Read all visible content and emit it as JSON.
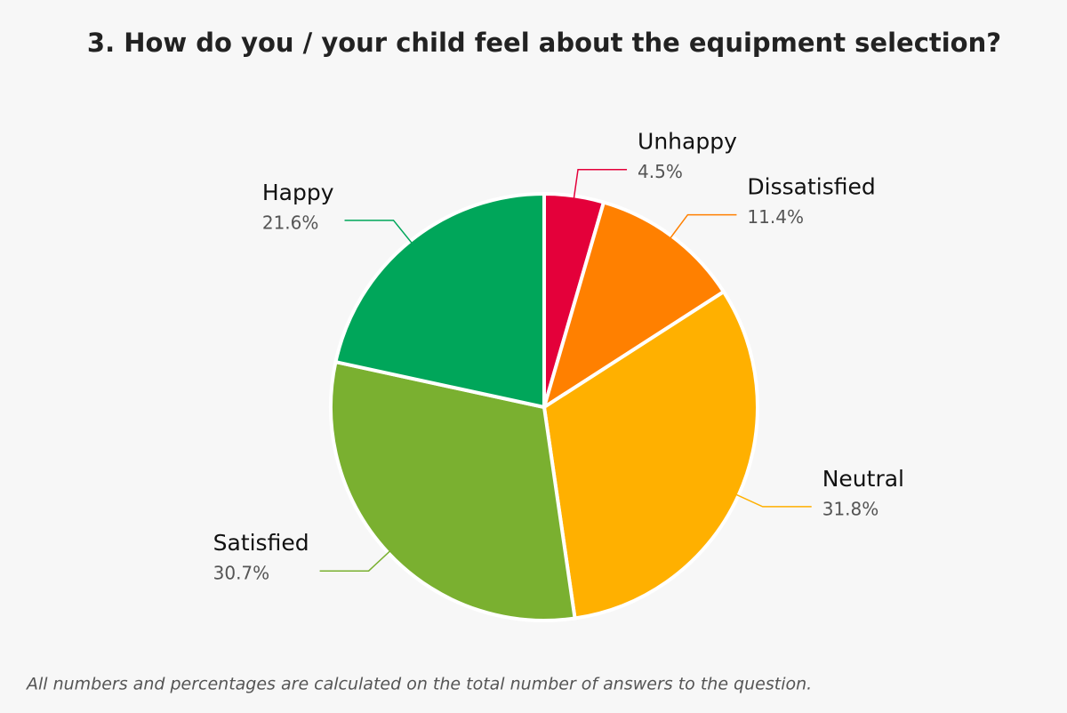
{
  "chart_data": {
    "type": "pie",
    "title": "3. How do you / your child feel about the equipment selection?",
    "categories": [
      "Unhappy",
      "Dissatisfied",
      "Neutral",
      "Satisfied",
      "Happy"
    ],
    "values": [
      4.5,
      11.4,
      31.8,
      30.7,
      21.6
    ],
    "value_labels": [
      "4.5%",
      "11.4%",
      "31.8%",
      "30.7%",
      "21.6%"
    ],
    "colors": [
      "#e4003a",
      "#ff8000",
      "#ffb000",
      "#7ab030",
      "#00a65a"
    ],
    "footnote": "All numbers and percentages are calculated on the total number of answers to the question."
  }
}
